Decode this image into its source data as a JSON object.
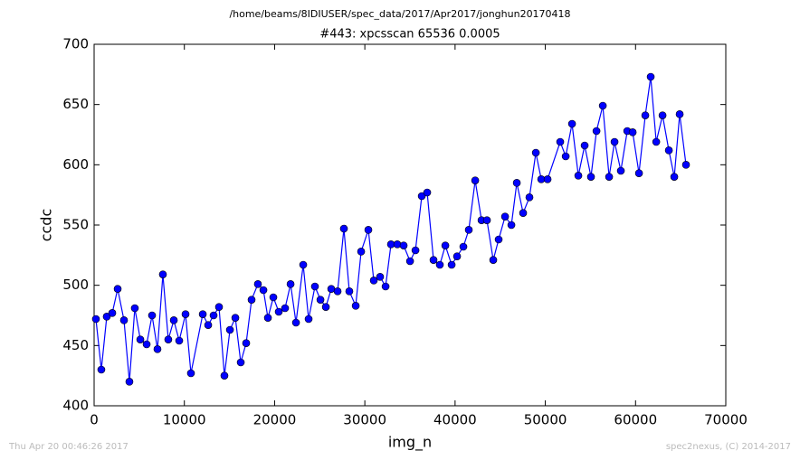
{
  "chart_data": {
    "type": "line",
    "suptitle": "/home/beams/8IDIUSER/spec_data/2017/Apr2017/jonghun20170418",
    "title": "#443: xpcsscan 65536 0.0005",
    "xlabel": "img_n",
    "ylabel": "ccdc",
    "footer_left": "Thu Apr 20 00:46:26 2017",
    "footer_right": "spec2nexus, (C) 2014-2017",
    "xlim": [
      0,
      70000
    ],
    "xticks": [
      0,
      10000,
      20000,
      30000,
      40000,
      50000,
      60000,
      70000
    ],
    "ylim": [
      400,
      700
    ],
    "yticks": [
      400,
      450,
      500,
      550,
      600,
      650,
      700
    ],
    "grid": false,
    "series": [
      {
        "name": "ccdc",
        "color": "#0000ff",
        "x": [
          200,
          800,
          1400,
          2010,
          2610,
          3310,
          3910,
          4510,
          5120,
          5820,
          6420,
          7020,
          7620,
          8220,
          8830,
          9430,
          10130,
          10730,
          12040,
          12640,
          13240,
          13840,
          14440,
          15050,
          15650,
          16250,
          16850,
          17450,
          18150,
          18760,
          19260,
          19860,
          20460,
          21160,
          21770,
          22370,
          23170,
          23770,
          24470,
          25080,
          25680,
          26280,
          26980,
          27680,
          28280,
          28990,
          29590,
          30390,
          30990,
          31690,
          32300,
          32900,
          33600,
          34300,
          35010,
          35610,
          36310,
          36910,
          37610,
          38310,
          38920,
          39620,
          40220,
          40920,
          41520,
          42230,
          42930,
          43530,
          44230,
          44830,
          45540,
          46240,
          46840,
          47540,
          48240,
          48950,
          49550,
          50250,
          51650,
          52260,
          52960,
          53660,
          54360,
          55060,
          55670,
          56370,
          57070,
          57670,
          58370,
          59080,
          59680,
          60380,
          61080,
          61680,
          62290,
          62990,
          63690,
          64290,
          64890,
          65590
        ],
        "values": [
          472,
          430,
          474,
          477,
          497,
          471,
          420,
          481,
          455,
          451,
          475,
          447,
          509,
          455,
          471,
          454,
          476,
          427,
          476,
          467,
          475,
          482,
          425,
          463,
          473,
          436,
          452,
          488,
          501,
          496,
          473,
          490,
          478,
          481,
          501,
          469,
          517,
          472,
          499,
          488,
          482,
          497,
          495,
          547,
          495,
          483,
          528,
          546,
          504,
          507,
          499,
          534,
          534,
          533,
          520,
          529,
          574,
          577,
          521,
          517,
          533,
          517,
          524,
          532,
          546,
          587,
          554,
          554,
          521,
          538,
          557,
          550,
          585,
          560,
          573,
          610,
          588,
          588,
          619,
          607,
          634,
          591,
          616,
          590,
          628,
          649,
          590,
          619,
          595,
          628,
          627,
          593,
          641,
          673,
          619,
          641,
          612,
          590,
          642,
          600
        ]
      }
    ]
  }
}
